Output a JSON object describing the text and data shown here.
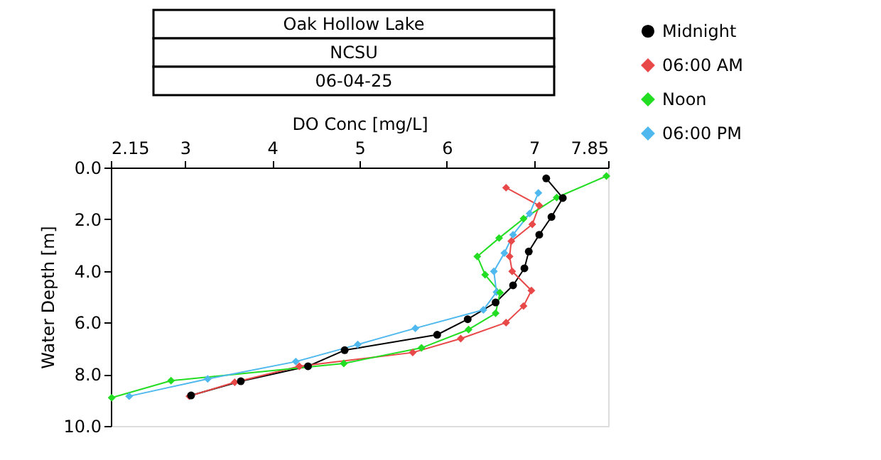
{
  "chart_data": {
    "type": "line",
    "title": "Oak Hollow Lake",
    "subtitle": "NCSU",
    "annotations": [
      "06-04-25"
    ],
    "xlabel": "DO Conc [mg/L]",
    "ylabel": "Water Depth [m]",
    "xlim": [
      2.15,
      7.85
    ],
    "xticks": [
      2.15,
      3,
      4,
      5,
      6,
      7,
      7.85
    ],
    "ylim": [
      10,
      0
    ],
    "yticks": [
      {
        "value": 0,
        "label": "0.0"
      },
      {
        "value": 2,
        "label": "2.0"
      },
      {
        "value": 4,
        "label": "4.0"
      },
      {
        "value": 6,
        "label": "6.0"
      },
      {
        "value": 8,
        "label": "8.0"
      },
      {
        "value": 10,
        "label": "10.0"
      }
    ],
    "grid": false,
    "legend": "top right",
    "series": [
      {
        "name": "Midnight",
        "color": "#000000",
        "marker": "circle",
        "x": [
          7.14,
          7.33,
          7.2,
          7.06,
          6.94,
          6.89,
          6.76,
          6.56,
          6.24,
          5.89,
          4.83,
          4.41,
          3.64,
          3.07
        ],
        "values": [
          0.42,
          1.18,
          1.91,
          2.6,
          3.25,
          3.9,
          4.56,
          5.22,
          5.87,
          6.47,
          7.07,
          7.69,
          8.27,
          8.82
        ]
      },
      {
        "name": "06:00 AM",
        "color": "#e84848",
        "marker": "diamond",
        "x": [
          6.68,
          7.06,
          6.98,
          6.74,
          6.72,
          6.75,
          6.97,
          6.88,
          6.68,
          6.16,
          5.61,
          4.31,
          3.57,
          3.05
        ],
        "values": [
          0.78,
          1.47,
          2.2,
          2.85,
          3.44,
          4.02,
          4.76,
          5.36,
          6.0,
          6.62,
          7.16,
          7.69,
          8.31,
          8.85
        ]
      },
      {
        "name": "Noon",
        "color": "#22dd22",
        "marker": "diamond",
        "x": [
          7.83,
          7.26,
          6.88,
          6.6,
          6.35,
          6.44,
          6.61,
          6.56,
          6.25,
          5.71,
          4.82,
          2.84,
          2.16
        ],
        "values": [
          0.33,
          1.16,
          1.98,
          2.73,
          3.44,
          4.15,
          4.84,
          5.64,
          6.27,
          6.98,
          7.58,
          8.25,
          8.91
        ]
      },
      {
        "name": "06:00 PM",
        "color": "#4fb8ee",
        "marker": "diamond",
        "x": [
          7.05,
          6.95,
          6.76,
          6.66,
          6.54,
          6.57,
          6.42,
          5.64,
          4.98,
          4.27,
          3.26,
          2.36
        ],
        "values": [
          0.98,
          1.78,
          2.6,
          3.31,
          4.02,
          4.82,
          5.51,
          6.22,
          6.85,
          7.51,
          8.18,
          8.85
        ]
      }
    ]
  }
}
